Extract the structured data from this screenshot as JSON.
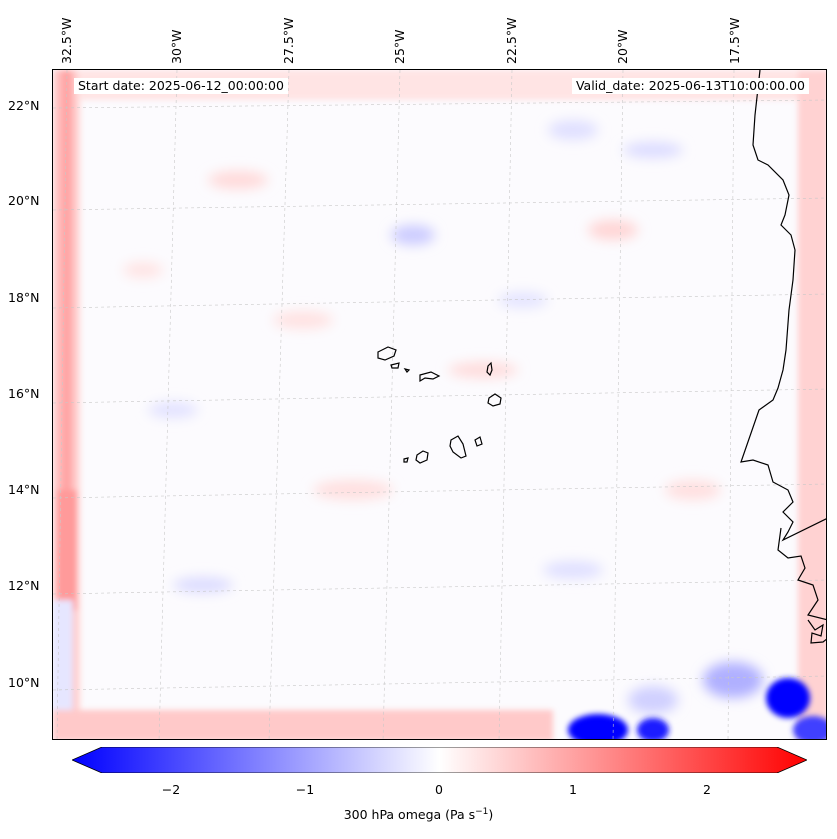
{
  "map": {
    "start_date": "Start date: 2025-06-12_00:00:00",
    "valid_date": "Valid_date: 2025-06-13T10:00:00.00",
    "lat_labels": [
      "22°N",
      "20°N",
      "18°N",
      "16°N",
      "14°N",
      "12°N",
      "10°N"
    ],
    "lon_labels": [
      "32.5°W",
      "30°W",
      "27.5°W",
      "25°W",
      "22.5°W",
      "20°W",
      "17.5°W"
    ],
    "region": "Cape Verde / West African coast"
  },
  "colorbar": {
    "ticks": [
      "−2",
      "−1",
      "0",
      "1",
      "2"
    ],
    "label": "300 hPa omega (Pa s",
    "label_sup": "−1",
    "label_end": ")",
    "min": -2.7,
    "max": 2.7,
    "colors": {
      "negative": "#0000ff",
      "zero": "#ffffff",
      "positive": "#ff0000"
    }
  }
}
